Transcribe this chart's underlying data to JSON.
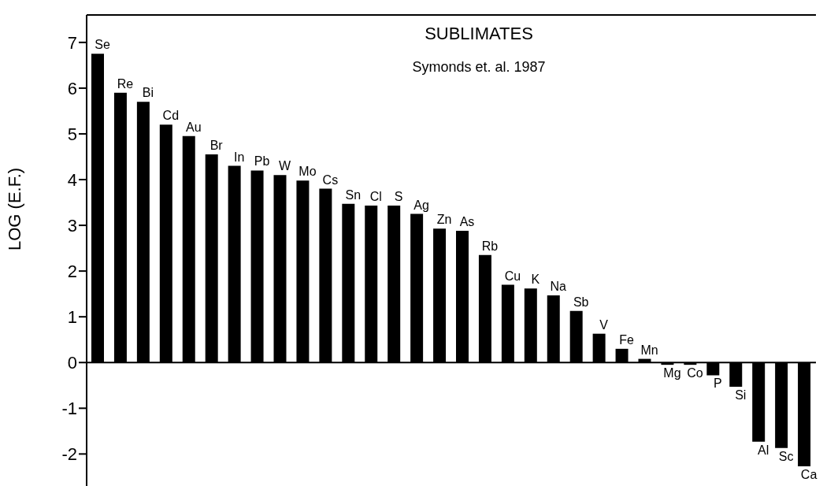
{
  "chart_data": {
    "type": "bar",
    "title": "SUBLIMATES",
    "subtitle": "Symonds et. al. 1987",
    "ylabel": "LOG (E.F.)",
    "categories": [
      "Se",
      "Re",
      "Bi",
      "Cd",
      "Au",
      "Br",
      "In",
      "Pb",
      "W",
      "Mo",
      "Cs",
      "Sn",
      "Cl",
      "S",
      "Ag",
      "Zn",
      "As",
      "Rb",
      "Cu",
      "K",
      "Na",
      "Sb",
      "V",
      "Fe",
      "Mn",
      "Mg",
      "Co",
      "P",
      "Si",
      "Al",
      "Sc",
      "Ca"
    ],
    "values": [
      6.75,
      5.9,
      5.7,
      5.2,
      4.95,
      4.55,
      4.3,
      4.2,
      4.1,
      3.98,
      3.8,
      3.47,
      3.43,
      3.43,
      3.25,
      2.93,
      2.88,
      2.35,
      1.7,
      1.62,
      1.47,
      1.13,
      0.63,
      0.3,
      0.08,
      -0.05,
      -0.05,
      -0.28,
      -0.53,
      -1.73,
      -1.87,
      -2.27
    ],
    "color": "#000000",
    "ylim": [
      -2.7,
      7.6
    ],
    "yticks": [
      -2,
      -1,
      0,
      1,
      2,
      3,
      4,
      5,
      6,
      7
    ],
    "grid": false,
    "legend": false
  }
}
